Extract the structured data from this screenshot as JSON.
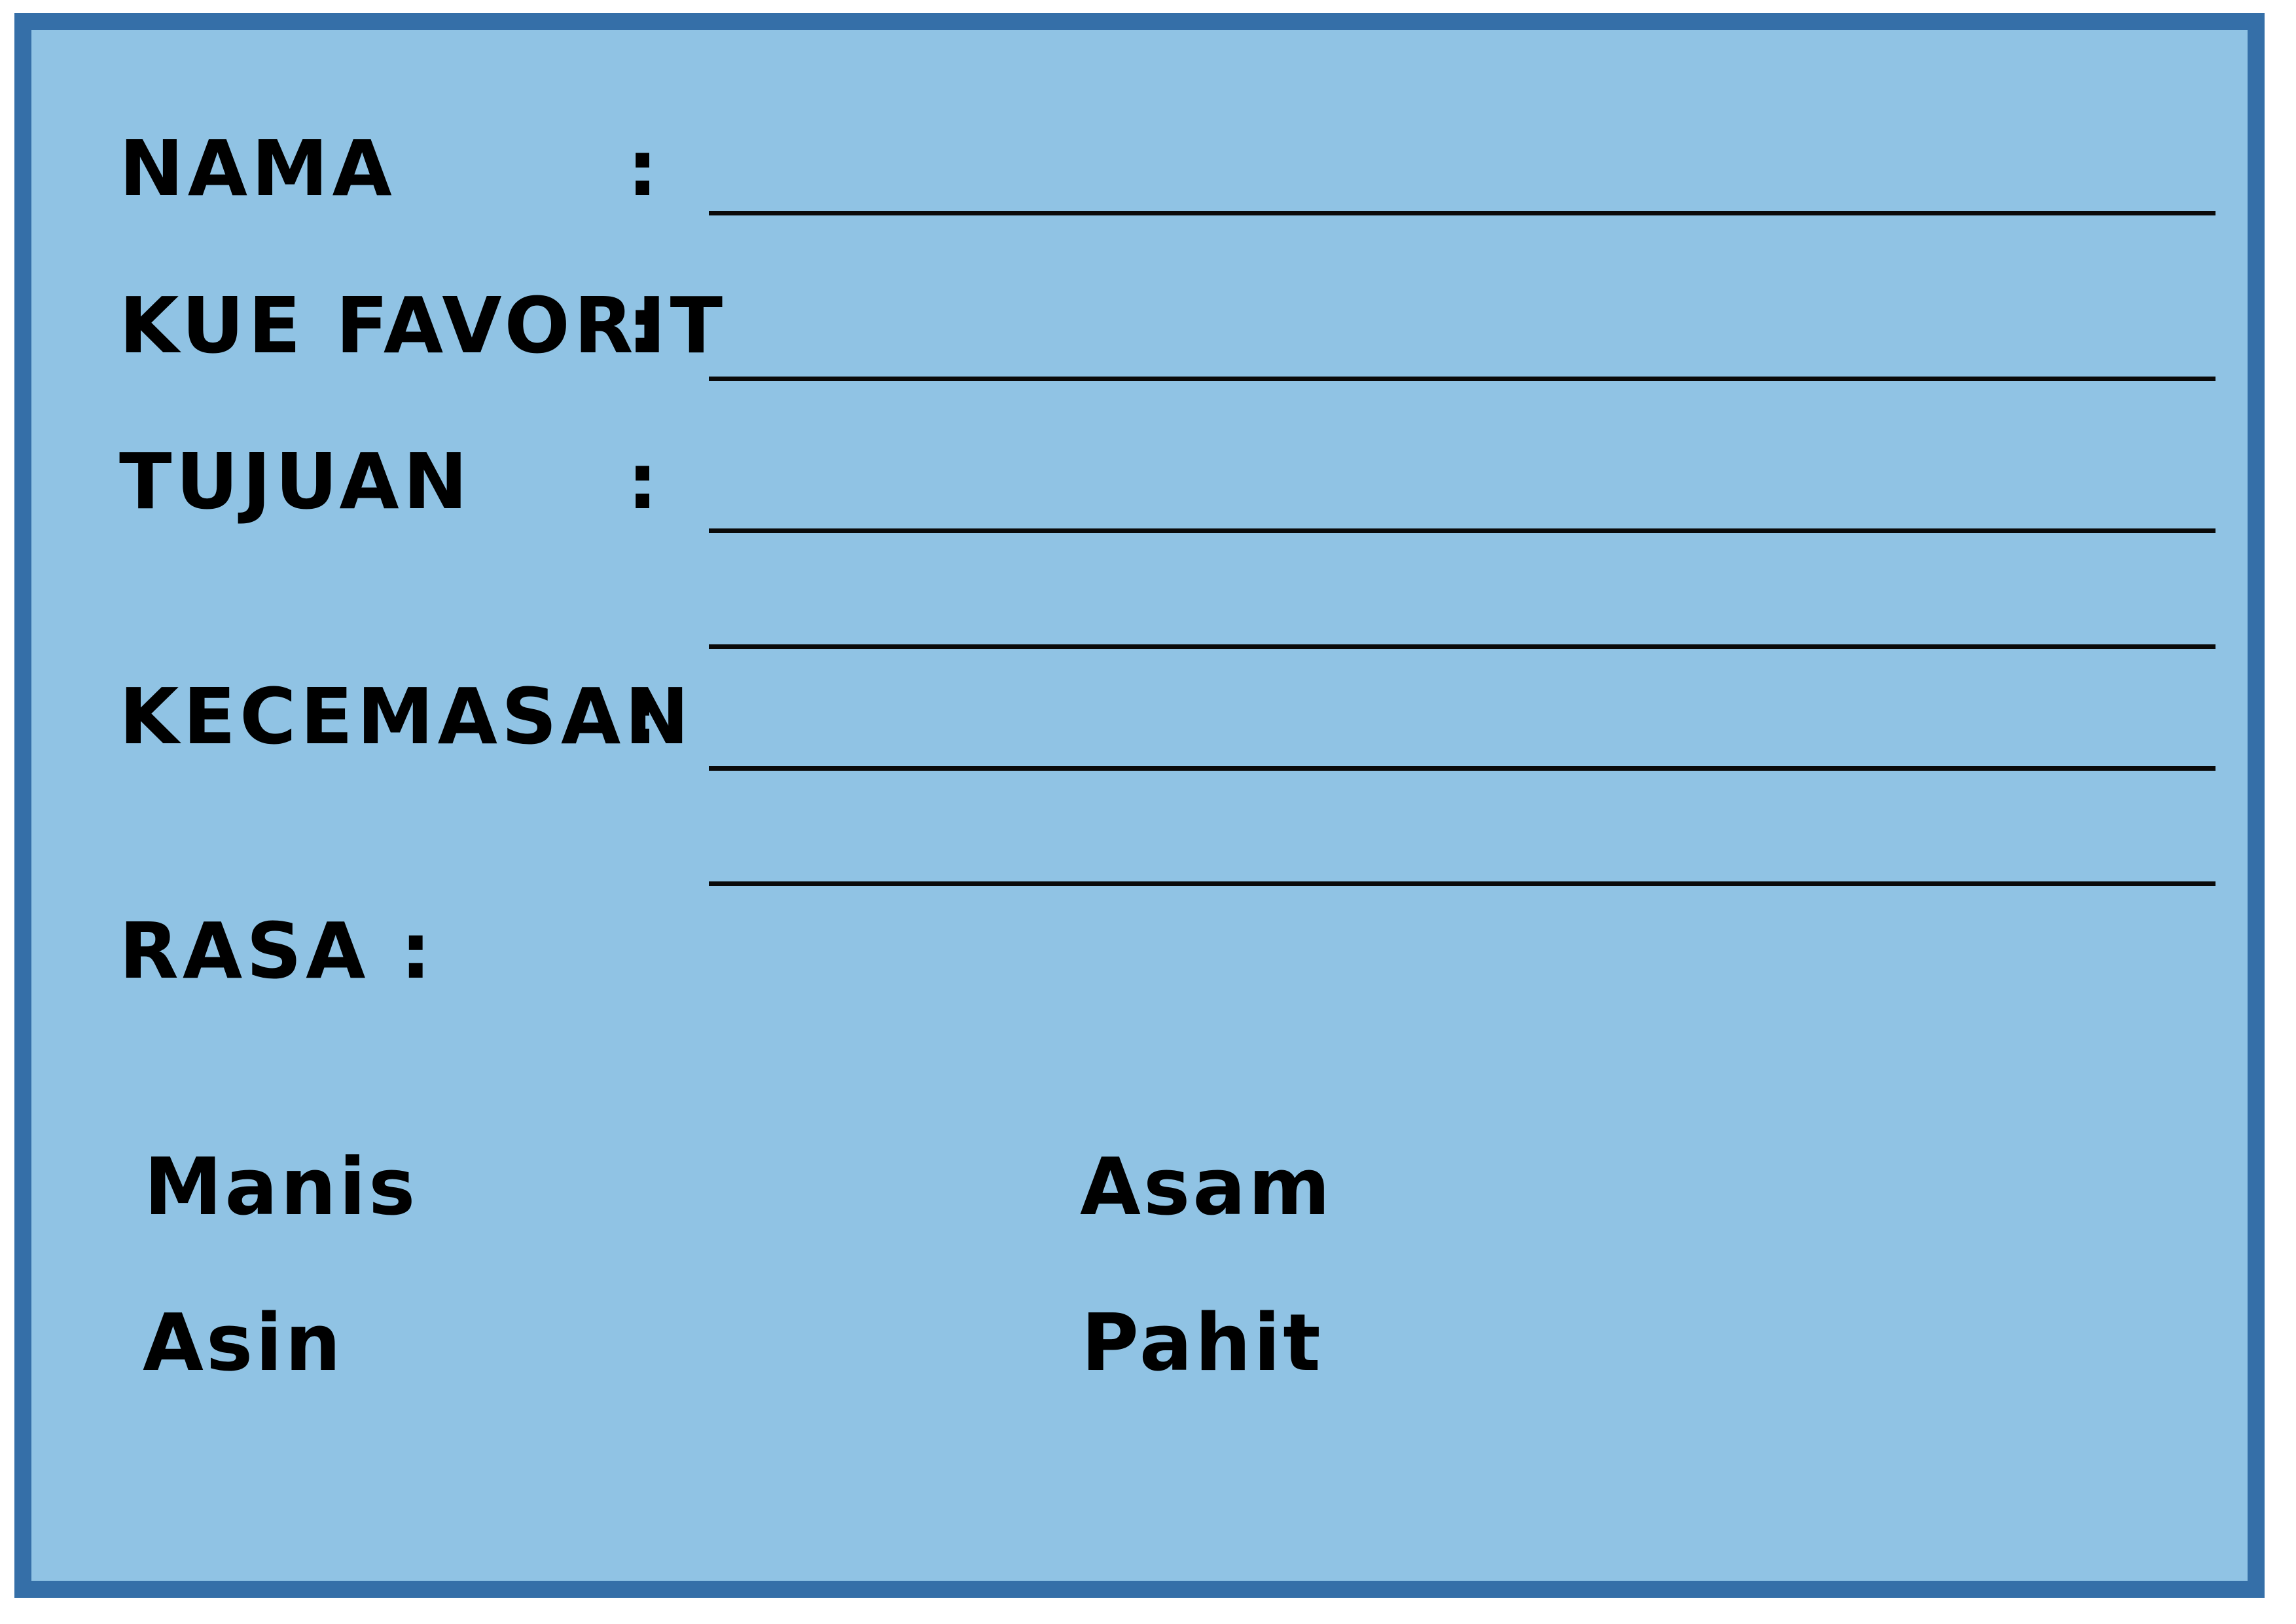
{
  "form": {
    "fields": {
      "nama": {
        "label": "NAMA",
        "colon": ":"
      },
      "kue_favorit": {
        "label": "KUE FAVORIT",
        "colon": ":"
      },
      "tujuan": {
        "label": "TUJUAN",
        "colon": ":"
      },
      "kecemasan": {
        "label": "KECEMASAN",
        "colon": ":"
      },
      "rasa": {
        "label": "RASA :"
      }
    },
    "rasa_options": [
      "Manis",
      "Asam",
      "Asin",
      "Pahit"
    ]
  },
  "colors": {
    "background": "#90c3e4",
    "border": "#356fa8",
    "text": "#000000"
  }
}
